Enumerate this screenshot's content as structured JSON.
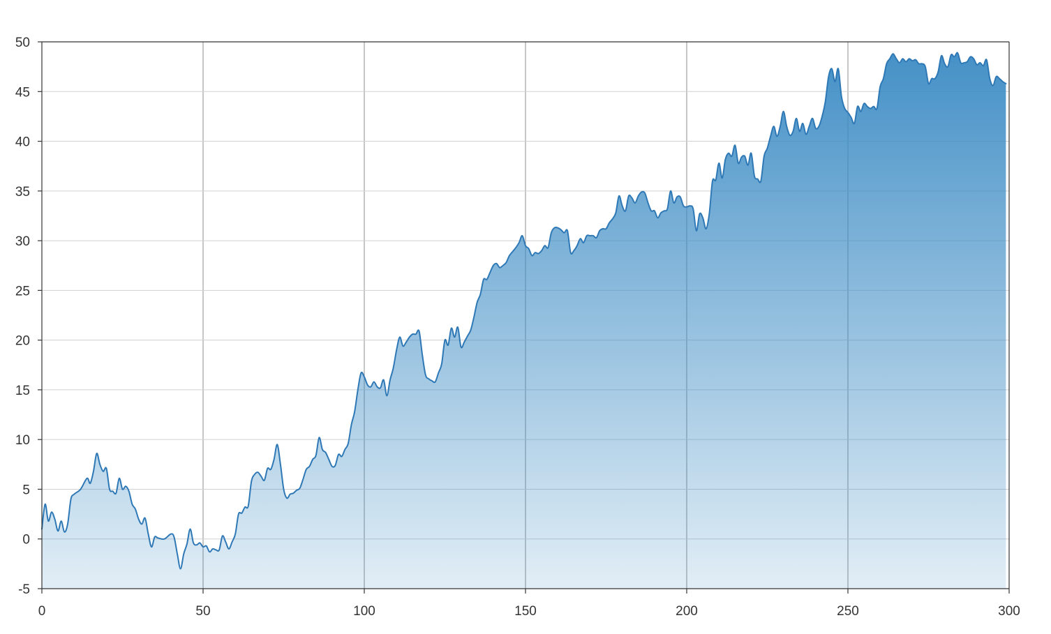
{
  "chart_data": {
    "type": "area",
    "title": "",
    "xlabel": "",
    "ylabel": "",
    "xlim": [
      0,
      300
    ],
    "ylim": [
      -5,
      50
    ],
    "x_ticks": [
      0,
      50,
      100,
      150,
      200,
      250,
      300
    ],
    "y_ticks": [
      -5,
      0,
      5,
      10,
      15,
      20,
      25,
      30,
      35,
      40,
      45,
      50
    ],
    "grid": true,
    "legend": "none",
    "colors": {
      "line": "#2e78b6",
      "fill_top": "#3b8bc4",
      "fill_bottom": "#ffffff",
      "grid_major": "#8c8c8c",
      "grid_minor": "#d0d0d0",
      "axis": "#333333"
    },
    "series": [
      {
        "x": [
          0,
          1,
          2,
          3,
          4,
          5,
          6,
          7,
          8,
          9,
          10,
          12,
          14,
          15,
          16,
          17,
          18,
          19,
          20,
          21,
          22,
          23,
          24,
          25,
          26,
          27,
          28,
          29,
          30,
          31,
          32,
          33,
          34,
          35,
          36,
          38,
          40,
          41,
          42,
          43,
          44,
          45,
          46,
          47,
          48,
          49,
          50,
          51,
          52,
          53,
          54,
          55,
          56,
          57,
          58,
          59,
          60,
          61,
          62,
          63,
          64,
          65,
          66,
          67,
          68,
          69,
          70,
          71,
          72,
          73,
          74,
          75,
          76,
          77,
          78,
          79,
          80,
          81,
          82,
          83,
          84,
          85,
          86,
          87,
          88,
          89,
          90,
          91,
          92,
          93,
          94,
          95,
          96,
          97,
          98,
          99,
          100,
          101,
          102,
          103,
          104,
          105,
          106,
          107,
          108,
          109,
          110,
          111,
          112,
          113,
          114,
          115,
          116,
          117,
          118,
          119,
          120,
          121,
          122,
          123,
          124,
          125,
          126,
          127,
          128,
          129,
          130,
          131,
          132,
          133,
          134,
          135,
          136,
          137,
          138,
          139,
          140,
          141,
          142,
          143,
          144,
          145,
          146,
          147,
          148,
          149,
          150,
          151,
          152,
          153,
          154,
          155,
          156,
          157,
          158,
          159,
          160,
          161,
          162,
          163,
          164,
          165,
          166,
          167,
          168,
          169,
          170,
          171,
          172,
          173,
          174,
          175,
          176,
          177,
          178,
          179,
          180,
          181,
          182,
          183,
          184,
          185,
          186,
          187,
          188,
          189,
          190,
          191,
          192,
          193,
          194,
          195,
          196,
          197,
          198,
          199,
          200,
          201,
          202,
          203,
          204,
          205,
          206,
          207,
          208,
          209,
          210,
          211,
          212,
          213,
          214,
          215,
          216,
          217,
          218,
          219,
          220,
          221,
          222,
          223,
          224,
          225,
          226,
          227,
          228,
          229,
          230,
          231,
          232,
          233,
          234,
          235,
          236,
          237,
          238,
          239,
          240,
          241,
          242,
          243,
          244,
          245,
          246,
          247,
          248,
          249,
          250,
          251,
          252,
          253,
          254,
          255,
          256,
          257,
          258,
          259,
          260,
          261,
          262,
          263,
          264,
          265,
          266,
          267,
          268,
          269,
          270,
          271,
          272,
          273,
          274,
          275,
          276,
          277,
          278,
          279,
          280,
          281,
          282,
          283,
          284,
          285,
          286,
          287,
          288,
          289,
          290,
          291,
          292,
          293,
          294,
          295,
          296,
          297,
          298,
          299
        ],
        "values": [
          1.0,
          3.5,
          1.8,
          2.7,
          2.0,
          0.8,
          1.8,
          0.7,
          1.5,
          4.0,
          4.5,
          5.0,
          6.1,
          5.6,
          6.8,
          8.6,
          7.5,
          6.8,
          7.1,
          5.0,
          4.8,
          4.6,
          6.1,
          5.0,
          5.3,
          4.8,
          3.5,
          3.0,
          2.0,
          1.5,
          2.1,
          0.5,
          -0.8,
          0.2,
          0.1,
          0.0,
          0.5,
          0.2,
          -1.5,
          -3.0,
          -1.5,
          -0.5,
          1.0,
          -0.4,
          -0.6,
          -0.4,
          -0.8,
          -0.7,
          -1.3,
          -1.0,
          -1.1,
          -1.1,
          0.3,
          -0.3,
          -1.0,
          -0.3,
          0.5,
          2.5,
          2.6,
          3.2,
          3.3,
          5.8,
          6.5,
          6.7,
          6.3,
          5.9,
          7.1,
          7.0,
          8.0,
          9.5,
          7.5,
          5.0,
          4.1,
          4.5,
          4.6,
          4.9,
          5.1,
          6.0,
          7.0,
          7.3,
          8.0,
          8.4,
          10.2,
          9.0,
          8.7,
          8.0,
          7.3,
          7.4,
          8.5,
          8.3,
          9.0,
          9.6,
          11.5,
          12.8,
          15.0,
          16.7,
          16.3,
          15.5,
          15.3,
          15.8,
          15.3,
          15.2,
          16.0,
          14.4,
          16.0,
          17.2,
          19.0,
          20.3,
          19.4,
          19.8,
          20.3,
          20.6,
          20.6,
          20.9,
          18.5,
          16.5,
          16.1,
          15.9,
          15.8,
          16.7,
          17.6,
          20.0,
          19.5,
          21.2,
          20.3,
          21.3,
          19.3,
          19.8,
          20.4,
          21.0,
          22.3,
          23.8,
          24.6,
          26.1,
          26.1,
          26.8,
          27.5,
          27.7,
          27.3,
          27.5,
          27.8,
          28.5,
          28.9,
          29.3,
          29.8,
          30.5,
          29.5,
          29.2,
          28.5,
          28.8,
          28.7,
          29.0,
          29.5,
          29.3,
          30.8,
          31.3,
          31.3,
          31.1,
          30.8,
          31.0,
          28.8,
          29.0,
          29.5,
          30.2,
          29.8,
          30.5,
          30.5,
          30.5,
          30.3,
          31.0,
          31.2,
          31.2,
          31.8,
          32.2,
          32.8,
          34.5,
          33.5,
          33.0,
          34.5,
          34.3,
          33.8,
          34.5,
          34.9,
          34.8,
          33.8,
          33.0,
          33.0,
          32.3,
          32.8,
          33.0,
          33.2,
          35.0,
          33.8,
          34.4,
          34.4,
          33.5,
          33.4,
          33.5,
          33.2,
          31.0,
          32.7,
          32.3,
          31.2,
          32.7,
          36.0,
          36.1,
          37.8,
          36.3,
          38.2,
          38.8,
          38.5,
          39.6,
          37.8,
          38.4,
          38.5,
          37.6,
          38.8,
          36.5,
          36.2,
          36.0,
          38.5,
          39.3,
          40.5,
          41.5,
          40.5,
          41.5,
          43.0,
          41.5,
          40.6,
          41.0,
          42.3,
          41.0,
          41.8,
          40.7,
          41.5,
          42.3,
          41.3,
          41.5,
          42.5,
          44.0,
          46.5,
          47.3,
          46.0,
          47.3,
          44.5,
          43.3,
          42.9,
          42.4,
          41.8,
          43.5,
          43.0,
          43.8,
          43.5,
          43.3,
          43.5,
          43.3,
          45.5,
          46.3,
          47.8,
          48.3,
          48.8,
          48.3,
          47.9,
          48.3,
          48.0,
          48.3,
          48.1,
          48.2,
          47.8,
          47.8,
          47.5,
          45.8,
          46.3,
          46.3,
          47.0,
          48.6,
          47.8,
          47.5,
          48.7,
          48.5,
          48.9,
          47.9,
          47.9,
          48.0,
          48.5,
          48.3,
          47.7,
          47.9,
          47.6,
          48.2,
          46.3,
          45.6,
          46.5,
          46.3,
          46.0,
          45.8
        ]
      }
    ]
  }
}
